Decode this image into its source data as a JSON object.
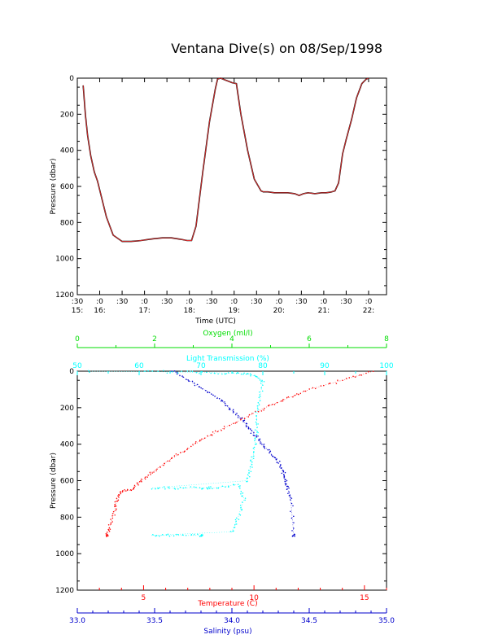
{
  "page": {
    "title": "Ventana Dive(s) on 08/Sep/1998"
  },
  "chart_data": [
    {
      "type": "line",
      "title": "Ventana Dive(s) on 08/Sep/1998",
      "xlabel": "Time (UTC)",
      "ylabel": "Pressure (dbar)",
      "x_unit": "hours UTC",
      "xlim": [
        15.5,
        22.4
      ],
      "ylim": [
        1200,
        0
      ],
      "y_reversed": true,
      "yticks": [
        0,
        200,
        400,
        600,
        800,
        1000,
        1200
      ],
      "xticks": [
        {
          "x": 15.5,
          "top": ":30",
          "bottom": "15:"
        },
        {
          "x": 16.0,
          "top": ":0",
          "bottom": "16:"
        },
        {
          "x": 16.5,
          "top": ":30",
          "bottom": ""
        },
        {
          "x": 17.0,
          "top": ":0",
          "bottom": "17:"
        },
        {
          "x": 17.5,
          "top": ":30",
          "bottom": ""
        },
        {
          "x": 18.0,
          "top": ":0",
          "bottom": "18:"
        },
        {
          "x": 18.5,
          "top": ":30",
          "bottom": ""
        },
        {
          "x": 19.0,
          "top": ":0",
          "bottom": "19:"
        },
        {
          "x": 19.5,
          "top": ":30",
          "bottom": ""
        },
        {
          "x": 20.0,
          "top": ":0",
          "bottom": "20:"
        },
        {
          "x": 20.5,
          "top": ":30",
          "bottom": ""
        },
        {
          "x": 21.0,
          "top": ":0",
          "bottom": "21:"
        },
        {
          "x": 21.5,
          "top": ":30",
          "bottom": ""
        },
        {
          "x": 22.0,
          "top": ":0",
          "bottom": "22:"
        }
      ],
      "colors": {
        "trace": "#000000",
        "smooth": "#e03030"
      },
      "series": [
        {
          "x": [
            15.63,
            15.68,
            15.73,
            15.8,
            15.88,
            15.95,
            16.03,
            16.15,
            16.3,
            16.5,
            16.7,
            16.85,
            16.92,
            17.05,
            17.2,
            17.4,
            17.6,
            17.8,
            17.95,
            18.05,
            18.15,
            18.3,
            18.45,
            18.58,
            18.63,
            18.7,
            18.8,
            18.9,
            18.95,
            19.05,
            19.15,
            19.3,
            19.45,
            19.6,
            19.65,
            19.75,
            19.9,
            20.05,
            20.2,
            20.35,
            20.45,
            20.55,
            20.65,
            20.8,
            20.95,
            21.05,
            21.15,
            21.25,
            21.33,
            21.42,
            21.5,
            21.62,
            21.73,
            21.85,
            21.95,
            22.0
          ],
          "y": [
            40,
            200,
            320,
            430,
            520,
            570,
            650,
            770,
            870,
            905,
            905,
            902,
            900,
            895,
            890,
            885,
            885,
            893,
            900,
            900,
            820,
            520,
            240,
            60,
            5,
            0,
            10,
            20,
            25,
            30,
            200,
            400,
            560,
            625,
            630,
            630,
            635,
            635,
            635,
            640,
            650,
            640,
            635,
            640,
            635,
            635,
            632,
            625,
            580,
            420,
            340,
            230,
            110,
            30,
            5,
            0
          ]
        }
      ]
    },
    {
      "type": "scatter",
      "ylabel": "Pressure (dbar)",
      "ylim": [
        1200,
        0
      ],
      "y_reversed": true,
      "yticks": [
        0,
        200,
        400,
        600,
        800,
        1000,
        1200
      ],
      "axes": {
        "oxygen": {
          "label": "Oxygen (ml/l)",
          "range": [
            0,
            8
          ],
          "ticks": [
            0,
            2,
            4,
            6,
            8
          ],
          "color": "#00dd00"
        },
        "transmission": {
          "label": "Light Transmission (%)",
          "range": [
            50,
            100
          ],
          "ticks": [
            50,
            60,
            70,
            80,
            90,
            100
          ],
          "color": "#00ffff"
        },
        "temperature": {
          "label": "Temperature (C)",
          "range": [
            2,
            16
          ],
          "ticks": [
            5,
            10,
            15
          ],
          "color": "#ff0000"
        },
        "salinity": {
          "label": "Salinity (psu)",
          "range": [
            33.0,
            35.0
          ],
          "ticks": [
            "33.0",
            "33.5",
            "34.0",
            "34.5",
            "35.0"
          ],
          "color": "#0000cc"
        }
      },
      "series": [
        {
          "name": "Temperature (C)",
          "axis": "temperature",
          "color": "#ff0000",
          "x": [
            15.4,
            14.0,
            12.5,
            11.5,
            10.5,
            9.5,
            8.5,
            7.6,
            6.8,
            6.0,
            5.3,
            4.8,
            4.5,
            4.0,
            3.8,
            3.7,
            3.5,
            3.35
          ],
          "y": [
            0,
            50,
            100,
            150,
            200,
            260,
            320,
            380,
            440,
            500,
            560,
            610,
            650,
            660,
            700,
            760,
            840,
            900
          ]
        },
        {
          "name": "Salinity (psu)",
          "axis": "salinity",
          "color": "#0000cc",
          "x": [
            33.62,
            33.72,
            33.82,
            33.92,
            33.98,
            34.05,
            34.1,
            34.15,
            34.2,
            34.25,
            34.3,
            34.33,
            34.35,
            34.36,
            34.38,
            34.4
          ],
          "y": [
            0,
            50,
            100,
            150,
            200,
            250,
            300,
            350,
            400,
            450,
            500,
            550,
            600,
            640,
            700,
            900
          ]
        },
        {
          "name": "Light Transmission (%)",
          "axis": "transmission",
          "color": "#00ffff",
          "x": [
            52,
            60,
            67,
            72,
            76,
            78,
            80,
            79.5,
            79,
            79,
            78.5,
            78,
            77.5,
            62,
            66,
            70,
            72,
            76,
            77,
            76,
            75,
            62,
            66,
            70
          ],
          "y": [
            0,
            2,
            5,
            8,
            12,
            18,
            50,
            150,
            250,
            350,
            450,
            530,
            600,
            640,
            640,
            640,
            640,
            620,
            700,
            800,
            880,
            900,
            900,
            900
          ]
        }
      ]
    }
  ]
}
